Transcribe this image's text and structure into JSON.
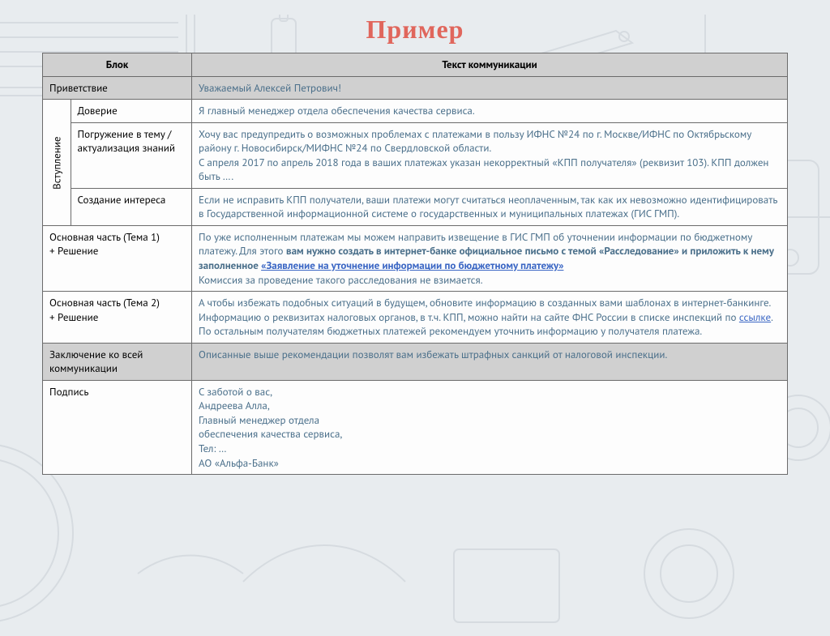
{
  "title": "Пример",
  "headers": {
    "col1": "Блок",
    "col2": "Текст коммуникации"
  },
  "rows": {
    "greeting": {
      "label": "Приветствие",
      "text": "Уважаемый Алексей Петрович!"
    },
    "intro_group": "Вступление",
    "trust": {
      "label": "Доверие",
      "text": "Я главный менеджер отдела обеспечения качества сервиса."
    },
    "context": {
      "label": "Погружение в тему /актуализация знаний",
      "text": "Хочу вас предупредить о возможных проблемах с платежами в пользу ИФНС №24 по г. Москве/ИФНС по Октябрьскому району г. Новосибирск/МИФНС №24 по Свердловской области.\nС апреля 2017  по  апрель 2018 года в ваших платежах указан некорректный «КПП получателя» (реквизит 103). КПП должен быть …."
    },
    "interest": {
      "label": "Создание интереса",
      "text": "Если не исправить КПП получатели, ваши платежи могут считаться неоплаченным, так как их невозможно идентифицировать в Государственной информационной системе о государственных и муниципальных платежах (ГИС ГМП)."
    },
    "main1": {
      "label": "Основная часть (Тема 1)\n   + Решение",
      "t1": "По уже исполненным платежам мы можем направить извещение в ГИС ГМП об уточнении информации по бюджетному платежу. Для этого ",
      "t2_bold": "вам нужно создать в интернет-банке официальное письмо с темой «Расследование» и приложить к нему заполненное ",
      "t3_link": "«Заявление на уточнение информации по бюджетному платежу»",
      "t4": "\nКомиссия за проведение такого расследования не взимается."
    },
    "main2": {
      "label": "Основная часть (Тема 2)\n   + Решение",
      "t1": "А чтобы избежать подобных ситуаций в будущем, обновите информацию в созданных вами шаблонах в интернет-банкинге.\nИнформацию о реквизитах налоговых органов, в т.ч. КПП, можно найти на сайте ФНС России в списке инспекций по ",
      "t2_link": "ссылке",
      "t3": ". По остальным получателям бюджетных платежей рекомендуем уточнить информацию у получателя платежа."
    },
    "conclusion": {
      "label": "Заключение ко всей коммуникации",
      "text": "Описанные выше рекомендации позволят вам избежать штрафных санкций от налоговой инспекции."
    },
    "signature": {
      "label": "Подпись",
      "text": "С заботой о вас,\nАндреева Алла,\nГлавный менеджер отдела\nобеспечения качества сервиса,\nТел: …\nАО «Альфа-Банк»"
    }
  },
  "colors": {
    "title": "#e0665c",
    "border": "#6b6b6b",
    "header_bg": "#d0d0d0",
    "body_text_blue": "#4a6f8a",
    "link": "#3a66c4",
    "page_bg": "#e8ecef"
  }
}
